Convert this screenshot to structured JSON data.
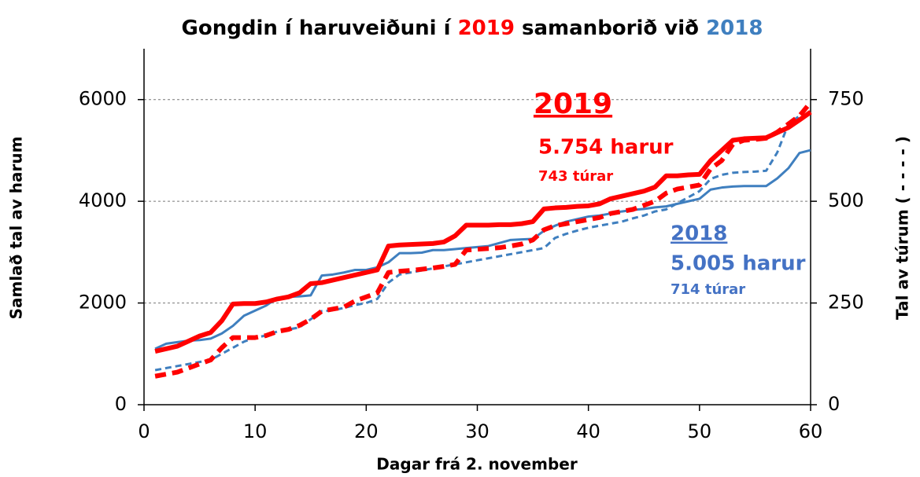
{
  "chart_data": {
    "type": "line",
    "title_parts": [
      {
        "text": "Gongdin í haruveiðuni í ",
        "color": "#000000"
      },
      {
        "text": "2019",
        "color": "#ff0000"
      },
      {
        "text": " samanborið við ",
        "color": "#000000"
      },
      {
        "text": "2018",
        "color": "#3f7fbf"
      }
    ],
    "x_label": "Dagar frá 2. november",
    "y_label": "Samlað tal av harum",
    "y2_label": "Tal av túrum ( - - - - )",
    "xlim": [
      0,
      60
    ],
    "xticks": [
      0,
      10,
      20,
      30,
      40,
      50,
      60
    ],
    "ylim": [
      0,
      7000
    ],
    "yticks": [
      0,
      2000,
      4000,
      6000
    ],
    "y2lim": [
      0,
      875
    ],
    "y2ticks": [
      0,
      250,
      500,
      750
    ],
    "grid": true,
    "x": [
      1,
      2,
      3,
      4,
      5,
      6,
      7,
      8,
      9,
      10,
      11,
      12,
      13,
      14,
      15,
      16,
      17,
      18,
      19,
      20,
      21,
      22,
      23,
      24,
      25,
      26,
      27,
      28,
      29,
      30,
      31,
      32,
      33,
      34,
      35,
      36,
      37,
      38,
      39,
      40,
      41,
      42,
      43,
      44,
      45,
      46,
      47,
      48,
      49,
      50,
      51,
      52,
      53,
      54,
      55,
      56,
      57,
      58,
      59,
      60
    ],
    "series": [
      {
        "color": "#3f7fbf",
        "width": 3,
        "dashed": false,
        "values": [
          1100,
          1200,
          1230,
          1260,
          1270,
          1300,
          1400,
          1550,
          1750,
          1850,
          1950,
          2100,
          2120,
          2130,
          2150,
          2540,
          2560,
          2600,
          2650,
          2650,
          2700,
          2800,
          2980,
          2980,
          2990,
          3040,
          3040,
          3060,
          3080,
          3100,
          3120,
          3180,
          3240,
          3250,
          3260,
          3420,
          3520,
          3600,
          3650,
          3700,
          3720,
          3760,
          3800,
          3830,
          3850,
          3880,
          3900,
          3950,
          4000,
          4050,
          4230,
          4270,
          4290,
          4300,
          4300,
          4300,
          4450,
          4650,
          4950,
          5005
        ]
      },
      {
        "color": "#3f7fbf",
        "width": 3,
        "dashed": true,
        "axis": "y2",
        "values": [
          85,
          90,
          95,
          100,
          105,
          110,
          125,
          140,
          155,
          165,
          170,
          180,
          185,
          190,
          210,
          230,
          232,
          238,
          245,
          250,
          260,
          300,
          320,
          325,
          330,
          335,
          340,
          345,
          350,
          355,
          360,
          365,
          370,
          375,
          380,
          385,
          410,
          420,
          428,
          435,
          440,
          445,
          450,
          458,
          465,
          475,
          480,
          495,
          510,
          525,
          555,
          565,
          570,
          572,
          573,
          575,
          620,
          690,
          710,
          714
        ]
      },
      {
        "color": "#ff0000",
        "width": 6,
        "dashed": false,
        "values": [
          1050,
          1100,
          1150,
          1250,
          1350,
          1420,
          1650,
          1980,
          1990,
          1990,
          2020,
          2080,
          2120,
          2200,
          2380,
          2400,
          2450,
          2500,
          2550,
          2600,
          2650,
          3120,
          3140,
          3150,
          3160,
          3170,
          3200,
          3320,
          3530,
          3530,
          3530,
          3540,
          3540,
          3560,
          3600,
          3850,
          3870,
          3880,
          3900,
          3910,
          3950,
          4050,
          4100,
          4150,
          4200,
          4280,
          4500,
          4500,
          4520,
          4530,
          4800,
          5000,
          5200,
          5230,
          5240,
          5250,
          5350,
          5450,
          5600,
          5754
        ]
      },
      {
        "color": "#ff0000",
        "width": 6,
        "dashed": true,
        "axis": "y2",
        "values": [
          70,
          75,
          80,
          90,
          100,
          110,
          140,
          165,
          165,
          165,
          170,
          180,
          185,
          195,
          210,
          230,
          235,
          240,
          255,
          265,
          275,
          325,
          328,
          330,
          333,
          336,
          340,
          345,
          380,
          382,
          384,
          386,
          390,
          395,
          405,
          430,
          440,
          445,
          450,
          455,
          460,
          470,
          475,
          480,
          490,
          500,
          520,
          530,
          535,
          540,
          580,
          600,
          640,
          650,
          652,
          655,
          670,
          690,
          710,
          743
        ]
      }
    ],
    "annotations": [
      {
        "text": "2019",
        "color": "#ff0000"
      },
      {
        "text": "5.754 harur",
        "color": "#ff0000"
      },
      {
        "text": "743 túrar",
        "color": "#ff0000"
      },
      {
        "text": "2018",
        "color": "#4472c4"
      },
      {
        "text": "5.005 harur",
        "color": "#4472c4"
      },
      {
        "text": "714 túrar",
        "color": "#4472c4"
      }
    ]
  }
}
